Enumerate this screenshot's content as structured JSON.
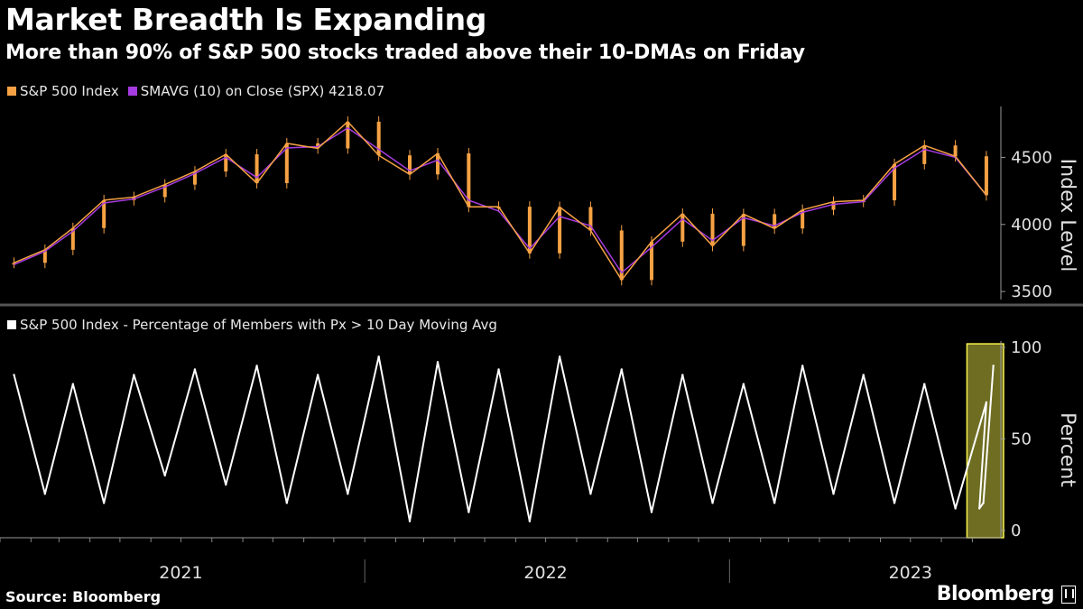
{
  "title": "Market Breadth Is Expanding",
  "subtitle": "More than 90% of S&P 500 stocks traded above their 10-DMAs on Friday",
  "source": "Source: Bloomberg",
  "brand": "Bloomberg",
  "colors": {
    "background": "#000000",
    "spx": "#f6a244",
    "sma": "#a53be0",
    "breadth": "#ffffff",
    "highlight": "#f7f24c"
  },
  "chart_data": [
    {
      "type": "line",
      "legend": [
        {
          "label": "S&P 500 Index",
          "color": "#f6a244"
        },
        {
          "label": "SMAVG (10)  on Close (SPX) 4218.07",
          "color": "#a53be0"
        }
      ],
      "ylabel": "Index Level",
      "ylim": [
        3420,
        4920
      ],
      "yticks": [
        3500,
        4000,
        4500
      ],
      "x_range": [
        "2021-01-01",
        "2023-09-25"
      ],
      "series": [
        {
          "name": "S&P 500 Index",
          "type": "candlestick",
          "x": [
            "2021-01",
            "2021-02",
            "2021-03",
            "2021-04",
            "2021-05",
            "2021-06",
            "2021-07",
            "2021-08",
            "2021-09",
            "2021-10",
            "2021-11",
            "2021-12",
            "2022-01",
            "2022-02",
            "2022-03",
            "2022-04",
            "2022-05",
            "2022-06",
            "2022-07",
            "2022-08",
            "2022-09",
            "2022-10",
            "2022-11",
            "2022-12",
            "2023-01",
            "2023-02",
            "2023-03",
            "2023-04",
            "2023-05",
            "2023-06",
            "2023-07",
            "2023-08",
            "2023-09"
          ],
          "values": [
            3714,
            3811,
            3973,
            4181,
            4204,
            4297,
            4395,
            4523,
            4308,
            4605,
            4567,
            4766,
            4515,
            4373,
            4530,
            4131,
            4132,
            3785,
            4130,
            3955,
            3586,
            3872,
            4080,
            3840,
            4077,
            3970,
            4109,
            4169,
            4180,
            4450,
            4589,
            4508,
            4218
          ]
        },
        {
          "name": "SMAVG (10)  on Close (SPX) 4218.07",
          "type": "line",
          "x": [
            "2021-01",
            "2021-02",
            "2021-03",
            "2021-04",
            "2021-05",
            "2021-06",
            "2021-07",
            "2021-08",
            "2021-09",
            "2021-10",
            "2021-11",
            "2021-12",
            "2022-01",
            "2022-02",
            "2022-03",
            "2022-04",
            "2022-05",
            "2022-06",
            "2022-07",
            "2022-08",
            "2022-09",
            "2022-10",
            "2022-11",
            "2022-12",
            "2023-01",
            "2023-02",
            "2023-03",
            "2023-04",
            "2023-05",
            "2023-06",
            "2023-07",
            "2023-08",
            "2023-09"
          ],
          "values": [
            3700,
            3800,
            3950,
            4160,
            4190,
            4280,
            4380,
            4500,
            4350,
            4570,
            4580,
            4720,
            4560,
            4400,
            4480,
            4180,
            4100,
            3820,
            4060,
            3990,
            3640,
            3830,
            4040,
            3880,
            4050,
            3990,
            4090,
            4150,
            4170,
            4420,
            4560,
            4500,
            4218
          ]
        }
      ]
    },
    {
      "type": "line",
      "legend": [
        {
          "label": "S&P 500 Index - Percentage of Members with Px > 10 Day Moving Avg",
          "color": "#ffffff"
        }
      ],
      "ylabel": "Percent",
      "ylim": [
        -5,
        105
      ],
      "yticks": [
        0,
        50,
        100
      ],
      "xtick_labels": [
        "2021",
        "2022",
        "2023"
      ],
      "highlight": {
        "from": "2023-09-01",
        "to": "2023-09-25",
        "label": ""
      },
      "series": [
        {
          "name": "S&P 500 Index - Percentage of Members with Px > 10 Day Moving Avg",
          "x": [
            "2021-01",
            "2021-02",
            "2021-03",
            "2021-04",
            "2021-05",
            "2021-06",
            "2021-07",
            "2021-08",
            "2021-09",
            "2021-10",
            "2021-11",
            "2021-12",
            "2022-01",
            "2022-02",
            "2022-03",
            "2022-04",
            "2022-05",
            "2022-06",
            "2022-07",
            "2022-08",
            "2022-09",
            "2022-10",
            "2022-11",
            "2022-12",
            "2023-01",
            "2023-02",
            "2023-03",
            "2023-04",
            "2023-05",
            "2023-06",
            "2023-07",
            "2023-08",
            "2023-09",
            "2023-09-08",
            "2023-09-12",
            "2023-09-22"
          ],
          "values": [
            85,
            20,
            80,
            15,
            85,
            30,
            88,
            25,
            90,
            15,
            85,
            20,
            95,
            5,
            92,
            10,
            88,
            5,
            95,
            20,
            88,
            10,
            85,
            15,
            80,
            15,
            90,
            20,
            85,
            15,
            80,
            12,
            70,
            12,
            15,
            90
          ]
        }
      ]
    }
  ]
}
